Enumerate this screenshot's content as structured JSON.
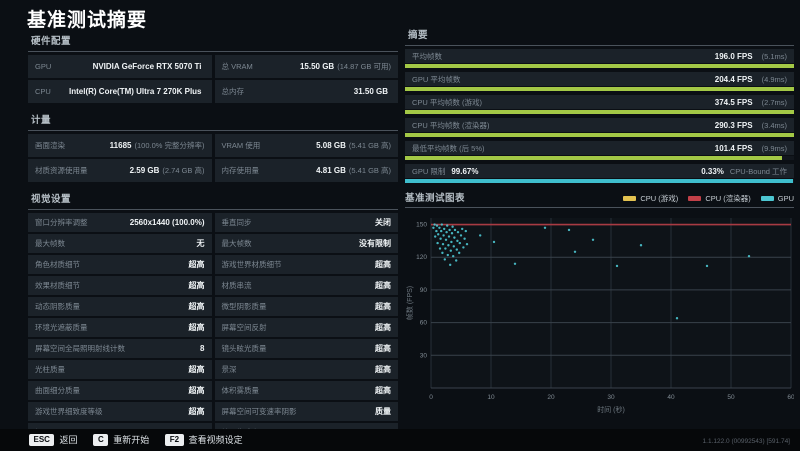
{
  "title": "基准测试摘要",
  "colors": {
    "bar_green": "#a3c846",
    "bar_cyan": "#3fbecd",
    "legend_yellow": "#e3c250",
    "legend_red": "#c24048",
    "line_red": "#a83b43",
    "scatter_teal": "#4cc6d1"
  },
  "hardware": {
    "header": "硬件配置",
    "cells": [
      {
        "label": "GPU",
        "value": "NVIDIA GeForce RTX 5070 Ti",
        "extra": ""
      },
      {
        "label": "总 VRAM",
        "value": "15.50 GB",
        "extra": "(14.87 GB 可用)"
      },
      {
        "label": "CPU",
        "value": "Intel(R) Core(TM) Ultra 7 270K Plus",
        "extra": ""
      },
      {
        "label": "总内存",
        "value": "31.50 GB",
        "extra": ""
      }
    ]
  },
  "metrics": {
    "header": "计量",
    "cells": [
      {
        "label": "画面渲染",
        "value": "11685",
        "extra": "(100.0% 完整分辨率)"
      },
      {
        "label": "VRAM 使用",
        "value": "5.08 GB",
        "extra": "(5.41 GB 高)"
      },
      {
        "label": "材质资源使用量",
        "value": "2.59 GB",
        "extra": "(2.74 GB 高)"
      },
      {
        "label": "内存使用量",
        "value": "4.81 GB",
        "extra": "(5.41 GB 高)"
      }
    ]
  },
  "visual_settings": {
    "header": "视觉设置",
    "left": [
      {
        "label": "窗口分辨率调整",
        "value": "2560x1440 (100.0%)"
      },
      {
        "label": "最大帧数",
        "value": "无"
      },
      {
        "label": "角色材质细节",
        "value": "超高"
      },
      {
        "label": "效果材质细节",
        "value": "超高"
      },
      {
        "label": "动态阴影质量",
        "value": "超高"
      },
      {
        "label": "环境光遮蔽质量",
        "value": "超高"
      },
      {
        "label": "屏幕空间全局照明射线计数",
        "value": "8"
      },
      {
        "label": "光柱质量",
        "value": "超高"
      },
      {
        "label": "曲面细分质量",
        "value": "超高"
      },
      {
        "label": "游戏世界细致度等级",
        "value": "超高"
      },
      {
        "label": "视野",
        "value": "80"
      }
    ],
    "right": [
      {
        "label": "垂直同步",
        "value": "关闭"
      },
      {
        "label": "最大帧数",
        "value": "没有限制"
      },
      {
        "label": "游戏世界材质细节",
        "value": "超高"
      },
      {
        "label": "材质串流",
        "value": "超高"
      },
      {
        "label": "微型阴影质量",
        "value": "超高"
      },
      {
        "label": "屏幕空间反射",
        "value": "超高"
      },
      {
        "label": "镜头眩光质量",
        "value": "超高"
      },
      {
        "label": "景深",
        "value": "超高"
      },
      {
        "label": "体积雾质量",
        "value": "超高"
      },
      {
        "label": "屏幕空间可变速率阴影",
        "value": "质量"
      },
      {
        "label": "粒子生成率",
        "value": "15"
      }
    ]
  },
  "summary": {
    "header": "摘要",
    "stats": [
      {
        "label": "平均帧数",
        "value": "196.0 FPS",
        "extra": "(5.1ms)",
        "bar_pct": 100,
        "bar_color": "#a3c846"
      },
      {
        "label": "GPU 平均帧数",
        "value": "204.4 FPS",
        "extra": "(4.9ms)",
        "bar_pct": 100,
        "bar_color": "#a3c846"
      },
      {
        "label": "CPU 平均帧数 (游戏)",
        "value": "374.5 FPS",
        "extra": "(2.7ms)",
        "bar_pct": 100,
        "bar_color": "#a3c846"
      },
      {
        "label": "CPU 平均帧数 (渲染器)",
        "value": "290.3 FPS",
        "extra": "(3.4ms)",
        "bar_pct": 100,
        "bar_color": "#a3c846"
      },
      {
        "label": "最低平均帧数 (后 5%)",
        "value": "101.4 FPS",
        "extra": "(9.9ms)",
        "bar_pct": 97,
        "bar_color": "#a3c846"
      }
    ],
    "gpu_limit": {
      "label": "GPU 限制",
      "value": "99.67%",
      "right_value": "0.33%",
      "right_label": "CPU-Bound 工作",
      "bar_pct": 99.67,
      "bar_color": "#3fbecd"
    }
  },
  "chart_data": {
    "type": "scatter",
    "title": "基准测试图表",
    "xlabel": "时间 (秒)",
    "ylabel": "帧数 (FPS)",
    "xlim": [
      0,
      60
    ],
    "ylim": [
      0,
      156
    ],
    "x_ticks": [
      0,
      10,
      20,
      30,
      40,
      50,
      60
    ],
    "y_ticks": [
      30,
      60,
      90,
      120,
      150
    ],
    "grid": true,
    "legend_position": "top-right",
    "legend": [
      {
        "name": "CPU (游戏)",
        "color": "#e3c250"
      },
      {
        "name": "CPU (渲染器)",
        "color": "#c24048"
      },
      {
        "name": "GPU",
        "color": "#4cc6d1"
      }
    ],
    "series": [
      {
        "name": "CPU (游戏)",
        "type": "line",
        "color": "#e3c250",
        "width": 1,
        "x": [
          0,
          60
        ],
        "y": [
          150,
          150
        ],
        "note": "clipped at chart top, hidden behind red line"
      },
      {
        "name": "CPU (渲染器)",
        "type": "line",
        "color": "#a83b43",
        "width": 1.6,
        "x": [
          0,
          60
        ],
        "y": [
          150,
          150
        ],
        "note": "clipped at chart top ~150 FPS"
      },
      {
        "name": "GPU",
        "type": "scatter",
        "color": "#4cc6d1",
        "points": [
          [
            0.4,
            147
          ],
          [
            0.6,
            150
          ],
          [
            0.7,
            139
          ],
          [
            0.9,
            144
          ],
          [
            1.0,
            149
          ],
          [
            1.1,
            133
          ],
          [
            1.2,
            141
          ],
          [
            1.4,
            147
          ],
          [
            1.5,
            128
          ],
          [
            1.6,
            137
          ],
          [
            1.7,
            144
          ],
          [
            1.8,
            150
          ],
          [
            1.9,
            124
          ],
          [
            2.0,
            132
          ],
          [
            2.1,
            140
          ],
          [
            2.2,
            146
          ],
          [
            2.3,
            118
          ],
          [
            2.4,
            128
          ],
          [
            2.5,
            136
          ],
          [
            2.6,
            143
          ],
          [
            2.7,
            149
          ],
          [
            2.8,
            122
          ],
          [
            2.9,
            131
          ],
          [
            3.0,
            139
          ],
          [
            3.1,
            145
          ],
          [
            3.2,
            113
          ],
          [
            3.3,
            126
          ],
          [
            3.4,
            134
          ],
          [
            3.5,
            142
          ],
          [
            3.6,
            148
          ],
          [
            3.7,
            121
          ],
          [
            3.8,
            130
          ],
          [
            3.9,
            138
          ],
          [
            4.0,
            145
          ],
          [
            4.2,
            117
          ],
          [
            4.3,
            127
          ],
          [
            4.4,
            135
          ],
          [
            4.5,
            143
          ],
          [
            4.7,
            124
          ],
          [
            4.8,
            133
          ],
          [
            5.0,
            140
          ],
          [
            5.2,
            146
          ],
          [
            5.4,
            129
          ],
          [
            5.6,
            137
          ],
          [
            5.8,
            144
          ],
          [
            6.0,
            132
          ],
          [
            8.2,
            140
          ],
          [
            10.5,
            134
          ],
          [
            14,
            114
          ],
          [
            19,
            147
          ],
          [
            23,
            145
          ],
          [
            24,
            125
          ],
          [
            27,
            136
          ],
          [
            31,
            112
          ],
          [
            35,
            131
          ],
          [
            41,
            64
          ],
          [
            46,
            112
          ],
          [
            53,
            121
          ]
        ]
      }
    ]
  },
  "footer": {
    "hints": [
      {
        "key": "ESC",
        "label": "返回"
      },
      {
        "key": "C",
        "label": "重新开始"
      },
      {
        "key": "F2",
        "label": "查看视频设定"
      }
    ],
    "version": "1.1.122.0 (00992543) [591.74]"
  }
}
